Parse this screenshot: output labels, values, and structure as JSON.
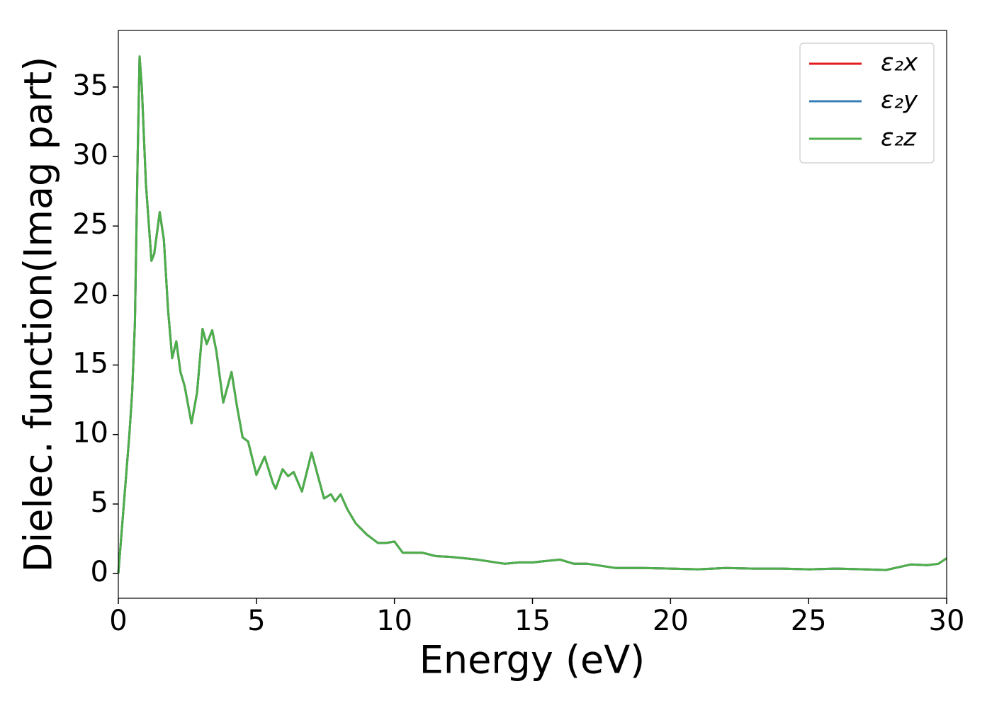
{
  "chart_data": {
    "type": "line",
    "xlabel": "Energy (eV)",
    "ylabel": "Dielec. function(Imag part)",
    "x": [
      0,
      0.2,
      0.4,
      0.5,
      0.6,
      0.7,
      0.77,
      0.85,
      1.0,
      1.2,
      1.3,
      1.5,
      1.65,
      1.8,
      1.95,
      2.1,
      2.25,
      2.4,
      2.65,
      2.85,
      3.05,
      3.2,
      3.4,
      3.55,
      3.8,
      4.1,
      4.3,
      4.5,
      4.7,
      5.0,
      5.3,
      5.6,
      5.7,
      5.95,
      6.15,
      6.35,
      6.65,
      7.0,
      7.3,
      7.45,
      7.7,
      7.85,
      8.05,
      8.3,
      8.6,
      9.0,
      9.4,
      9.7,
      10.0,
      10.3,
      11,
      11.5,
      12,
      13,
      14,
      14.5,
      15,
      16,
      16.5,
      17,
      18,
      19,
      20,
      21,
      22,
      23,
      24,
      25,
      26,
      27,
      27.8,
      28.7,
      29.3,
      29.7,
      30
    ],
    "series": [
      {
        "name": "ε₂x",
        "color": "#e41a1c",
        "values": [
          0,
          5,
          10,
          13,
          18,
          30,
          37.2,
          35,
          28,
          22.5,
          23,
          26,
          24,
          19,
          15.5,
          16.7,
          14.5,
          13.5,
          10.8,
          13,
          17.6,
          16.5,
          17.5,
          16,
          12.3,
          14.5,
          12,
          9.8,
          9.5,
          7.1,
          8.4,
          6.5,
          6.1,
          7.5,
          7,
          7.3,
          5.9,
          8.7,
          6.5,
          5.4,
          5.7,
          5.2,
          5.7,
          4.6,
          3.6,
          2.8,
          2.2,
          2.2,
          2.3,
          1.5,
          1.5,
          1.25,
          1.2,
          1.0,
          0.7,
          0.8,
          0.8,
          1.0,
          0.7,
          0.7,
          0.4,
          0.4,
          0.35,
          0.3,
          0.4,
          0.35,
          0.35,
          0.3,
          0.35,
          0.3,
          0.25,
          0.65,
          0.6,
          0.7,
          1.1
        ]
      },
      {
        "name": "ε₂y",
        "color": "#377eb8",
        "values": [
          0,
          5,
          10,
          13,
          18,
          30,
          37.2,
          35,
          28,
          22.5,
          23,
          26,
          24,
          19,
          15.5,
          16.7,
          14.5,
          13.5,
          10.8,
          13,
          17.6,
          16.5,
          17.5,
          16,
          12.3,
          14.5,
          12,
          9.8,
          9.5,
          7.1,
          8.4,
          6.5,
          6.1,
          7.5,
          7,
          7.3,
          5.9,
          8.7,
          6.5,
          5.4,
          5.7,
          5.2,
          5.7,
          4.6,
          3.6,
          2.8,
          2.2,
          2.2,
          2.3,
          1.5,
          1.5,
          1.25,
          1.2,
          1.0,
          0.7,
          0.8,
          0.8,
          1.0,
          0.7,
          0.7,
          0.4,
          0.4,
          0.35,
          0.3,
          0.4,
          0.35,
          0.35,
          0.3,
          0.35,
          0.3,
          0.25,
          0.65,
          0.6,
          0.7,
          1.1
        ]
      },
      {
        "name": "ε₂z",
        "color": "#4daf4a",
        "values": [
          0,
          5,
          10,
          13,
          18,
          30,
          37.2,
          35,
          28,
          22.5,
          23,
          26,
          24,
          19,
          15.5,
          16.7,
          14.5,
          13.5,
          10.8,
          13,
          17.6,
          16.5,
          17.5,
          16,
          12.3,
          14.5,
          12,
          9.8,
          9.5,
          7.1,
          8.4,
          6.5,
          6.1,
          7.5,
          7,
          7.3,
          5.9,
          8.7,
          6.5,
          5.4,
          5.7,
          5.2,
          5.7,
          4.6,
          3.6,
          2.8,
          2.2,
          2.2,
          2.3,
          1.5,
          1.5,
          1.25,
          1.2,
          1.0,
          0.7,
          0.8,
          0.8,
          1.0,
          0.7,
          0.7,
          0.4,
          0.4,
          0.35,
          0.3,
          0.4,
          0.35,
          0.35,
          0.3,
          0.35,
          0.3,
          0.25,
          0.65,
          0.6,
          0.7,
          1.1
        ]
      }
    ],
    "xlim": [
      0,
      30
    ],
    "xticks": [
      0,
      5,
      10,
      15,
      20,
      25,
      30
    ],
    "ylim": [
      -1.78,
      39.07
    ],
    "yticks": [
      0,
      5,
      10,
      15,
      20,
      25,
      30,
      35
    ],
    "grid": false,
    "legend": "upper right"
  }
}
